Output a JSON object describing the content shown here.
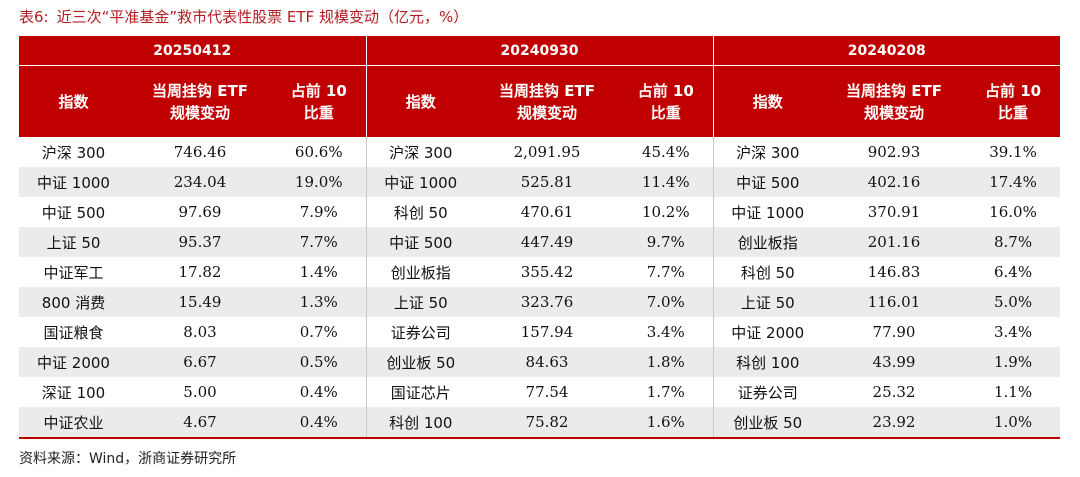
{
  "caption": {
    "label": "表6:",
    "text": "近三次“平准基金”救市代表性股票 ETF 规模变动（亿元，%）"
  },
  "headers": {
    "index": "指数",
    "size_change": "当周挂钩 ETF 规模变动",
    "weight": "占前 10 比重"
  },
  "periods": [
    {
      "date": "20250412",
      "rows": [
        {
          "name": "沪深 300",
          "size": "746.46",
          "pct": "60.6%"
        },
        {
          "name": "中证 1000",
          "size": "234.04",
          "pct": "19.0%"
        },
        {
          "name": "中证 500",
          "size": "97.69",
          "pct": "7.9%"
        },
        {
          "name": "上证 50",
          "size": "95.37",
          "pct": "7.7%"
        },
        {
          "name": "中证军工",
          "size": "17.82",
          "pct": "1.4%"
        },
        {
          "name": "800 消费",
          "size": "15.49",
          "pct": "1.3%"
        },
        {
          "name": "国证粮食",
          "size": "8.03",
          "pct": "0.7%"
        },
        {
          "name": "中证 2000",
          "size": "6.67",
          "pct": "0.5%"
        },
        {
          "name": "深证 100",
          "size": "5.00",
          "pct": "0.4%"
        },
        {
          "name": "中证农业",
          "size": "4.67",
          "pct": "0.4%"
        }
      ]
    },
    {
      "date": "20240930",
      "rows": [
        {
          "name": "沪深 300",
          "size": "2,091.95",
          "pct": "45.4%"
        },
        {
          "name": "中证 1000",
          "size": "525.81",
          "pct": "11.4%"
        },
        {
          "name": "科创 50",
          "size": "470.61",
          "pct": "10.2%"
        },
        {
          "name": "中证 500",
          "size": "447.49",
          "pct": "9.7%"
        },
        {
          "name": "创业板指",
          "size": "355.42",
          "pct": "7.7%"
        },
        {
          "name": "上证 50",
          "size": "323.76",
          "pct": "7.0%"
        },
        {
          "name": "证券公司",
          "size": "157.94",
          "pct": "3.4%"
        },
        {
          "name": "创业板 50",
          "size": "84.63",
          "pct": "1.8%"
        },
        {
          "name": "国证芯片",
          "size": "77.54",
          "pct": "1.7%"
        },
        {
          "name": "科创 100",
          "size": "75.82",
          "pct": "1.6%"
        }
      ]
    },
    {
      "date": "20240208",
      "rows": [
        {
          "name": "沪深 300",
          "size": "902.93",
          "pct": "39.1%"
        },
        {
          "name": "中证 500",
          "size": "402.16",
          "pct": "17.4%"
        },
        {
          "name": "中证 1000",
          "size": "370.91",
          "pct": "16.0%"
        },
        {
          "name": "创业板指",
          "size": "201.16",
          "pct": "8.7%"
        },
        {
          "name": "科创 50",
          "size": "146.83",
          "pct": "6.4%"
        },
        {
          "name": "上证 50",
          "size": "116.01",
          "pct": "5.0%"
        },
        {
          "name": "中证 2000",
          "size": "77.90",
          "pct": "3.4%"
        },
        {
          "name": "科创 100",
          "size": "43.99",
          "pct": "1.9%"
        },
        {
          "name": "证券公司",
          "size": "25.32",
          "pct": "1.1%"
        },
        {
          "name": "创业板 50",
          "size": "23.92",
          "pct": "1.0%"
        }
      ]
    }
  ],
  "source": "资料来源：Wind，浙商证券研究所",
  "colors": {
    "header_bg": "#c00000",
    "stripe": "#ebebeb",
    "caption": "#b21d22"
  }
}
